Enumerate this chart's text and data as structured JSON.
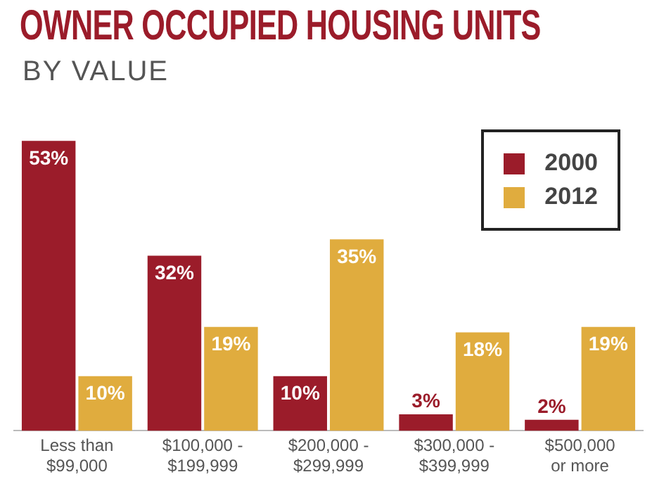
{
  "chart_data": {
    "type": "bar",
    "title": "OWNER OCCUPIED HOUSING UNITS",
    "subtitle": "BY VALUE",
    "categories": [
      "Less than\n$99,000",
      "$100,000 -\n$199,999",
      "$200,000 -\n$299,999",
      "$300,000 -\n$399,999",
      "$500,000\nor more"
    ],
    "series": [
      {
        "name": "2000",
        "color": "#9b1c2a",
        "values": [
          53,
          32,
          10,
          3,
          2
        ],
        "value_labels": [
          "53%",
          "32%",
          "10%",
          "3%",
          "2%"
        ]
      },
      {
        "name": "2012",
        "color": "#e0ac3e",
        "values": [
          10,
          19,
          35,
          18,
          19
        ],
        "value_labels": [
          "10%",
          "19%",
          "35%",
          "18%",
          "19%"
        ]
      }
    ],
    "legend": "top right",
    "grid": false
  }
}
